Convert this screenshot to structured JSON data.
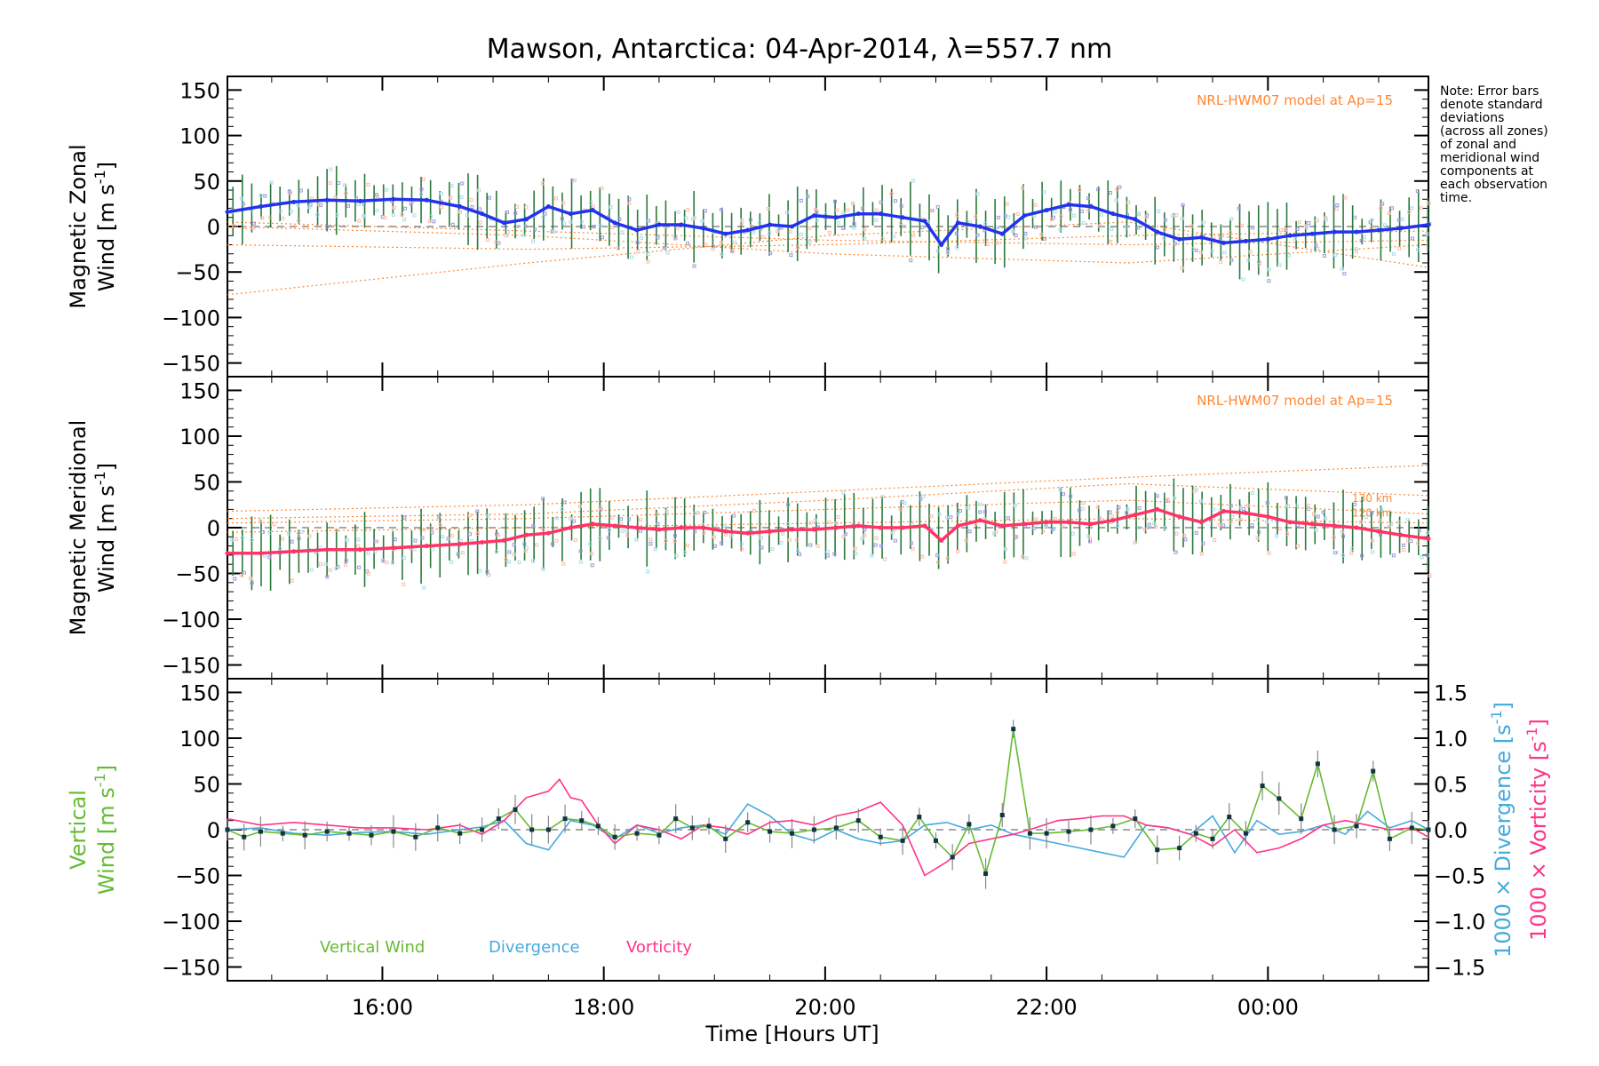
{
  "title": "Mawson, Antarctica: 04-Apr-2014, λ=557.7 nm",
  "note": "Note: Error bars\ndenote standard\ndeviations\n(across all zones)\nof zonal and\nmeridional wind\ncomponents at\neach observation\ntime.",
  "colors": {
    "zonal": "#2233ee",
    "meridional": "#ff3366",
    "vertical": "#66bb33",
    "divergence": "#44aadd",
    "vorticity": "#ff3388",
    "model": "#ff8833",
    "zones": "#9999dd"
  },
  "chart_data": [
    {
      "type": "line",
      "panel": "zonal",
      "ylabel_line1": "Magnetic Zonal",
      "ylabel_line2": "Wind [m s",
      "ylabel_sup": "-1",
      "ylabel_end": "]",
      "ylim": [
        -165,
        165
      ],
      "yticks": [
        150,
        100,
        50,
        0,
        -50,
        -100,
        -150
      ],
      "xlim": [
        14.6,
        25.45
      ],
      "model_label": "NRL-HWM07 model at Ap=15",
      "series": [
        {
          "x": [
            14.6,
            14.9,
            15.2,
            15.5,
            15.8,
            16.1,
            16.4,
            16.7,
            16.9,
            17.1,
            17.3,
            17.5,
            17.7,
            17.9,
            18.1,
            18.3,
            18.5,
            18.7,
            18.9,
            19.1,
            19.3,
            19.5,
            19.7,
            19.9,
            20.1,
            20.3,
            20.5,
            20.7,
            20.9,
            21.05,
            21.2,
            21.4,
            21.6,
            21.8,
            22.0,
            22.2,
            22.4,
            22.6,
            22.8,
            23.0,
            23.2,
            23.4,
            23.6,
            23.8,
            24.0,
            24.2,
            24.4,
            24.6,
            24.8,
            25.0,
            25.2,
            25.45
          ],
          "y": [
            16,
            22,
            27,
            29,
            28,
            30,
            29,
            22,
            14,
            4,
            8,
            22,
            14,
            18,
            4,
            -4,
            2,
            2,
            -2,
            -8,
            -4,
            2,
            0,
            12,
            10,
            14,
            14,
            10,
            6,
            -20,
            4,
            0,
            -8,
            12,
            18,
            24,
            22,
            14,
            8,
            -6,
            -14,
            -12,
            -18,
            -16,
            -14,
            -10,
            -8,
            -6,
            -6,
            -4,
            -2,
            2
          ]
        }
      ]
    },
    {
      "type": "line",
      "panel": "meridional",
      "ylabel_line1": "Magnetic Meridional",
      "ylabel_line2": "Wind [m s",
      "ylabel_sup": "-1",
      "ylabel_end": "]",
      "ylim": [
        -165,
        165
      ],
      "yticks": [
        150,
        100,
        50,
        0,
        -50,
        -100,
        -150
      ],
      "xlim": [
        14.6,
        25.45
      ],
      "model_label": "NRL-HWM07 model at Ap=15",
      "model_height_labels": [
        "130 km",
        "120 km"
      ],
      "series": [
        {
          "x": [
            14.6,
            14.9,
            15.2,
            15.5,
            15.8,
            16.1,
            16.4,
            16.7,
            16.9,
            17.1,
            17.3,
            17.5,
            17.7,
            17.9,
            18.1,
            18.3,
            18.5,
            18.7,
            18.9,
            19.1,
            19.3,
            19.5,
            19.7,
            19.9,
            20.1,
            20.3,
            20.5,
            20.7,
            20.9,
            21.05,
            21.2,
            21.4,
            21.6,
            21.8,
            22.0,
            22.2,
            22.4,
            22.6,
            22.8,
            23.0,
            23.2,
            23.4,
            23.6,
            23.8,
            24.0,
            24.2,
            24.4,
            24.6,
            24.8,
            25.0,
            25.2,
            25.45
          ],
          "y": [
            -28,
            -28,
            -26,
            -24,
            -24,
            -22,
            -20,
            -18,
            -16,
            -14,
            -8,
            -6,
            0,
            4,
            2,
            0,
            -2,
            0,
            0,
            -4,
            -6,
            -4,
            -2,
            -2,
            0,
            2,
            0,
            0,
            2,
            -14,
            2,
            8,
            2,
            4,
            6,
            6,
            4,
            8,
            14,
            20,
            12,
            6,
            18,
            16,
            12,
            6,
            4,
            2,
            0,
            -4,
            -8,
            -12
          ]
        }
      ]
    },
    {
      "type": "line",
      "panel": "vertical",
      "ylabel_line1": "Vertical",
      "ylabel_line2": "Wind [m s",
      "ylabel_sup": "-1",
      "ylabel_end": "]",
      "ylim": [
        -165,
        165
      ],
      "yticks": [
        150,
        100,
        50,
        0,
        -50,
        -100,
        -150
      ],
      "y2lim": [
        -1.65,
        1.65
      ],
      "y2ticks": [
        "1.5",
        "1.0",
        "0.5",
        "0.0",
        "-0.5",
        "-1.0",
        "-1.5"
      ],
      "y2label_div": "1000 × Divergence [s",
      "y2label_vor": "1000 × Vorticity [s",
      "y2label_sup": "-1",
      "y2label_end": "]",
      "xlim": [
        14.6,
        25.45
      ],
      "xticks": [
        "16:00",
        "18:00",
        "20:00",
        "22:00",
        "00:00"
      ],
      "xtick_values": [
        16,
        18,
        20,
        22,
        24
      ],
      "xlabel": "Time [Hours UT]",
      "legend": [
        "Vertical Wind",
        "Divergence",
        "Vorticity"
      ],
      "series": [
        {
          "name": "Vertical Wind",
          "x": [
            14.6,
            14.75,
            14.9,
            15.1,
            15.3,
            15.5,
            15.7,
            15.9,
            16.1,
            16.3,
            16.5,
            16.7,
            16.9,
            17.05,
            17.2,
            17.35,
            17.5,
            17.65,
            17.8,
            17.95,
            18.1,
            18.3,
            18.5,
            18.65,
            18.8,
            18.95,
            19.1,
            19.3,
            19.5,
            19.7,
            19.9,
            20.1,
            20.3,
            20.5,
            20.7,
            20.85,
            21.0,
            21.15,
            21.3,
            21.45,
            21.6,
            21.7,
            21.85,
            22.0,
            22.2,
            22.4,
            22.6,
            22.8,
            23.0,
            23.2,
            23.35,
            23.5,
            23.65,
            23.8,
            23.95,
            24.1,
            24.3,
            24.45,
            24.6,
            24.8,
            24.95,
            25.1,
            25.3,
            25.45
          ],
          "y": [
            0,
            -8,
            -2,
            -4,
            -6,
            -2,
            -4,
            -6,
            -2,
            -8,
            2,
            -4,
            0,
            12,
            22,
            0,
            0,
            12,
            10,
            4,
            -8,
            -4,
            -6,
            12,
            2,
            4,
            -10,
            8,
            -2,
            -4,
            0,
            2,
            10,
            -8,
            -12,
            14,
            -12,
            -30,
            6,
            -48,
            16,
            110,
            -4,
            -4,
            -2,
            0,
            4,
            12,
            -22,
            -20,
            -4,
            -10,
            14,
            -4,
            48,
            34,
            12,
            72,
            0,
            4,
            64,
            -10,
            2,
            0
          ]
        },
        {
          "name": "Divergence",
          "x": [
            14.6,
            14.9,
            15.2,
            15.5,
            15.8,
            16.1,
            16.4,
            16.7,
            16.9,
            17.1,
            17.3,
            17.5,
            17.7,
            17.9,
            18.1,
            18.3,
            18.5,
            18.7,
            18.9,
            19.1,
            19.3,
            19.5,
            19.7,
            19.9,
            20.1,
            20.3,
            20.5,
            20.7,
            20.9,
            21.1,
            21.3,
            21.5,
            21.7,
            21.9,
            22.1,
            22.3,
            22.5,
            22.7,
            22.9,
            23.1,
            23.3,
            23.5,
            23.7,
            23.9,
            24.1,
            24.3,
            24.5,
            24.7,
            24.9,
            25.1,
            25.3,
            25.45
          ],
          "y": [
            0.0,
            0.02,
            -0.04,
            -0.06,
            -0.03,
            -0.02,
            -0.05,
            0.0,
            0.03,
            0.1,
            -0.15,
            -0.22,
            0.1,
            0.05,
            -0.1,
            0.05,
            -0.04,
            0.02,
            0.05,
            -0.05,
            0.28,
            0.15,
            -0.05,
            -0.12,
            0.0,
            -0.1,
            -0.15,
            -0.12,
            0.05,
            0.08,
            0.0,
            0.05,
            -0.05,
            -0.1,
            -0.15,
            -0.2,
            -0.25,
            -0.3,
            0.05,
            0.02,
            -0.05,
            0.15,
            -0.25,
            0.1,
            -0.05,
            -0.02,
            0.05,
            -0.05,
            0.2,
            0.02,
            0.1,
            0.0
          ]
        },
        {
          "name": "Vorticity",
          "x": [
            14.6,
            14.9,
            15.2,
            15.5,
            15.8,
            16.1,
            16.4,
            16.7,
            16.9,
            17.1,
            17.3,
            17.5,
            17.6,
            17.7,
            17.8,
            17.95,
            18.1,
            18.3,
            18.5,
            18.7,
            18.9,
            19.1,
            19.3,
            19.5,
            19.7,
            19.9,
            20.1,
            20.3,
            20.5,
            20.7,
            20.9,
            21.1,
            21.3,
            21.5,
            21.7,
            21.9,
            22.1,
            22.3,
            22.5,
            22.7,
            22.9,
            23.1,
            23.3,
            23.5,
            23.7,
            23.9,
            24.1,
            24.3,
            24.5,
            24.7,
            24.9,
            25.1,
            25.3,
            25.45
          ],
          "y": [
            0.12,
            0.05,
            0.08,
            0.05,
            0.02,
            0.02,
            0.0,
            0.05,
            -0.05,
            0.1,
            0.35,
            0.42,
            0.55,
            0.35,
            0.32,
            0.05,
            -0.15,
            0.05,
            0.0,
            -0.1,
            0.05,
            0.02,
            -0.05,
            0.08,
            0.1,
            0.05,
            0.15,
            0.2,
            0.3,
            0.05,
            -0.5,
            -0.35,
            -0.15,
            -0.1,
            -0.05,
            0.02,
            0.1,
            0.12,
            0.15,
            0.15,
            0.05,
            0.02,
            -0.05,
            -0.18,
            0.0,
            -0.25,
            -0.2,
            -0.1,
            0.05,
            0.1,
            0.05,
            0.0,
            0.02,
            -0.08
          ]
        }
      ]
    }
  ]
}
